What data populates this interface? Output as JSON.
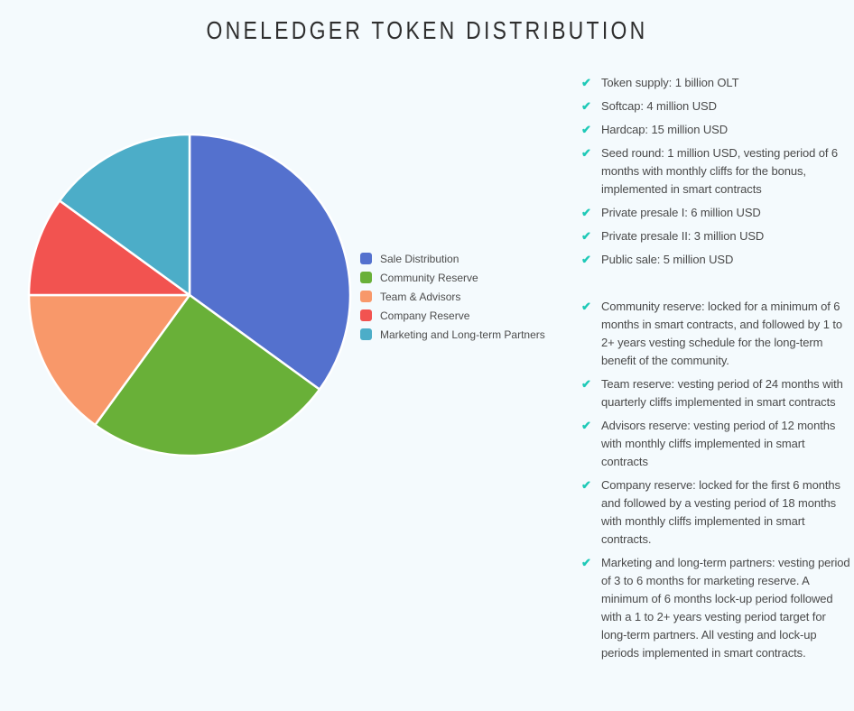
{
  "page": {
    "title": "ONELEDGER TOKEN DISTRIBUTION",
    "background_color": "#f4fafd"
  },
  "chart_data": {
    "type": "pie",
    "title": "ONELEDGER TOKEN DISTRIBUTION",
    "unit": "percent",
    "start_angle_deg": 0,
    "direction": "clockwise",
    "legend_position": "right-of-pie",
    "slice_border_color": "#ffffff",
    "slices": [
      {
        "label": "Sale Distribution",
        "value": 35,
        "color": "#5471ce"
      },
      {
        "label": "Community Reserve",
        "value": 25,
        "color": "#69b038"
      },
      {
        "label": "Team & Advisors",
        "value": 15,
        "color": "#f8986a"
      },
      {
        "label": "Company Reserve",
        "value": 10,
        "color": "#f25350"
      },
      {
        "label": "Marketing and Long-term Partners",
        "value": 15,
        "color": "#4cadc8"
      }
    ]
  },
  "details": {
    "check_icon": "✔",
    "check_color": "#1ec9b7",
    "sections": [
      {
        "name": "sale-facts",
        "items": [
          "Token supply: 1 billion OLT",
          "Softcap: 4 million USD",
          "Hardcap: 15 million USD",
          "Seed round: 1 million USD, vesting period of 6 months with monthly cliffs for the bonus, implemented in smart contracts",
          "Private presale I: 6 million USD",
          "Private presale II: 3 million USD",
          "Public sale: 5 million USD"
        ]
      },
      {
        "name": "vesting-facts",
        "items": [
          "Community reserve: locked for a minimum of 6 months in smart contracts, and followed by 1 to 2+ years vesting schedule for the long-term benefit of the community.",
          "Team reserve: vesting period of 24 months with quarterly cliffs implemented in smart contracts",
          "Advisors reserve: vesting period of 12 months with monthly cliffs implemented in smart contracts",
          "Company reserve: locked for the first 6 months and followed by a vesting period of 18 months with monthly cliffs implemented in smart contracts.",
          "Marketing and long-term partners: vesting period of 3 to 6 months for marketing reserve. A minimum of 6 months lock-up period followed with a 1 to 2+ years vesting period target for long-term partners. All vesting and lock-up periods implemented in smart contracts."
        ]
      }
    ]
  }
}
